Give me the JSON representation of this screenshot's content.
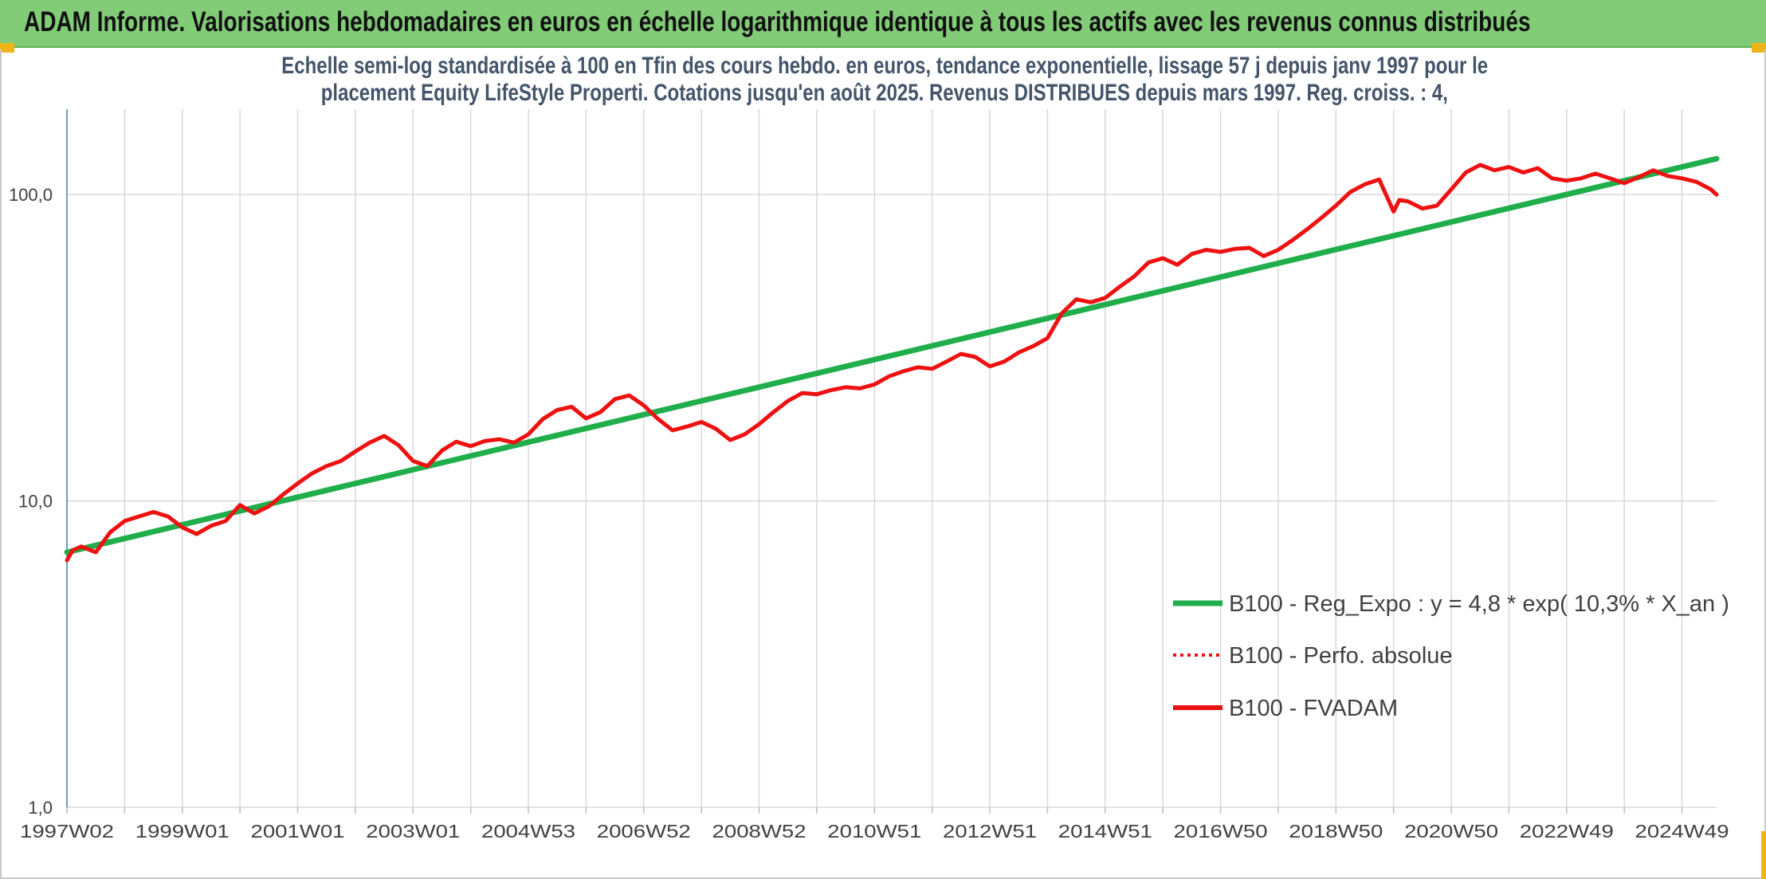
{
  "header": {
    "title": "ADAM Informe. Valorisations hebdomadaires en euros en échelle logarithmique identique à tous les actifs avec les revenus connus distribués"
  },
  "colors": {
    "banner": "#82cc78",
    "regression": "#1fae4b",
    "fvadam": "#ee1111",
    "perfo": "#ee1111",
    "grid": "#d9d9d9",
    "axis_text": "#404040",
    "subtitle": "#44546a",
    "accent_corner": "#f0b419"
  },
  "chart_data": {
    "type": "line",
    "title": "Echelle semi-log standardisée à 100 en Tfin des cours hebdo. en euros, tendance exponentielle, lissage 57 j depuis janv 1997 pour le placement Equity LifeStyle Properti. Cotations jusqu'en août 2025. Revenus DISTRIBUES depuis mars 1997. Reg. croiss. : 4,",
    "subtitle_lines": [
      "Echelle semi-log standardisée à 100 en Tfin des cours hebdo. en euros, tendance exponentielle, lissage 57 j depuis janv 1997 pour le",
      "placement Equity LifeStyle Properti. Cotations jusqu'en août 2025. Revenus DISTRIBUES depuis mars 1997. Reg. croiss. : 4,"
    ],
    "y_scale": "log",
    "ylim": [
      1,
      190
    ],
    "xlim": [
      1997.0,
      2025.6
    ],
    "grid": true,
    "legend_position": "right",
    "y_ticks": [
      {
        "value": 1,
        "label": "1,0"
      },
      {
        "value": 10,
        "label": "10,0"
      },
      {
        "value": 100,
        "label": "100,0"
      }
    ],
    "x_ticks": [
      {
        "value": 1997.0,
        "label": "1997W02"
      },
      {
        "value": 1999.0,
        "label": "1999W01"
      },
      {
        "value": 2001.0,
        "label": "2001W01"
      },
      {
        "value": 2003.0,
        "label": "2003W01"
      },
      {
        "value": 2005.0,
        "label": "2004W53"
      },
      {
        "value": 2007.0,
        "label": "2006W52"
      },
      {
        "value": 2009.0,
        "label": "2008W52"
      },
      {
        "value": 2011.0,
        "label": "2010W51"
      },
      {
        "value": 2013.0,
        "label": "2012W51"
      },
      {
        "value": 2015.0,
        "label": "2014W51"
      },
      {
        "value": 2017.0,
        "label": "2016W50"
      },
      {
        "value": 2019.0,
        "label": "2018W50"
      },
      {
        "value": 2021.0,
        "label": "2020W50"
      },
      {
        "value": 2023.0,
        "label": "2022W49"
      },
      {
        "value": 2025.0,
        "label": "2024W49"
      }
    ],
    "minor_gridlines": [
      1998.0,
      2000.0,
      2002.0,
      2004.0,
      2006.0,
      2008.0,
      2010.0,
      2012.0,
      2014.0,
      2016.0,
      2018.0,
      2020.0,
      2022.0,
      2024.0
    ],
    "series": [
      {
        "name": "B100 - Reg_Expo : y = 4,8 * exp( 10,3% *  X_an )",
        "style": "solid-thick",
        "color": "#1fae4b",
        "x": [
          1997.0,
          2025.6
        ],
        "y": [
          6.8,
          131
        ]
      },
      {
        "name": "B100 - Perfo. absolue",
        "style": "dotted",
        "color": "#ee1111",
        "x": [],
        "y": []
      },
      {
        "name": "B100 - FVADAM",
        "style": "solid",
        "color": "#ee1111",
        "x": [
          1997.0,
          1997.1,
          1997.25,
          1997.5,
          1997.75,
          1998.0,
          1998.25,
          1998.5,
          1998.75,
          1999.0,
          1999.25,
          1999.5,
          1999.75,
          2000.0,
          2000.25,
          2000.5,
          2000.75,
          2001.0,
          2001.25,
          2001.5,
          2001.75,
          2002.0,
          2002.25,
          2002.5,
          2002.75,
          2003.0,
          2003.25,
          2003.5,
          2003.75,
          2004.0,
          2004.25,
          2004.5,
          2004.75,
          2005.0,
          2005.25,
          2005.5,
          2005.75,
          2006.0,
          2006.25,
          2006.5,
          2006.75,
          2007.0,
          2007.25,
          2007.5,
          2007.75,
          2008.0,
          2008.25,
          2008.5,
          2008.75,
          2009.0,
          2009.25,
          2009.5,
          2009.75,
          2010.0,
          2010.25,
          2010.5,
          2010.75,
          2011.0,
          2011.25,
          2011.5,
          2011.75,
          2012.0,
          2012.25,
          2012.5,
          2012.75,
          2013.0,
          2013.25,
          2013.5,
          2013.75,
          2014.0,
          2014.25,
          2014.5,
          2014.75,
          2015.0,
          2015.25,
          2015.5,
          2015.75,
          2016.0,
          2016.25,
          2016.5,
          2016.75,
          2017.0,
          2017.25,
          2017.5,
          2017.75,
          2018.0,
          2018.25,
          2018.5,
          2018.75,
          2019.0,
          2019.25,
          2019.5,
          2019.75,
          2020.0,
          2020.1,
          2020.25,
          2020.5,
          2020.75,
          2021.0,
          2021.25,
          2021.5,
          2021.75,
          2022.0,
          2022.25,
          2022.5,
          2022.75,
          2023.0,
          2023.25,
          2023.5,
          2023.75,
          2024.0,
          2024.25,
          2024.5,
          2024.75,
          2025.0,
          2025.25,
          2025.5,
          2025.6
        ],
        "y": [
          6.4,
          6.9,
          7.1,
          6.8,
          7.9,
          8.6,
          8.9,
          9.2,
          8.9,
          8.2,
          7.8,
          8.3,
          8.6,
          9.7,
          9.1,
          9.6,
          10.5,
          11.4,
          12.3,
          13.0,
          13.5,
          14.5,
          15.5,
          16.3,
          15.2,
          13.5,
          13.0,
          14.6,
          15.6,
          15.1,
          15.7,
          15.9,
          15.5,
          16.5,
          18.5,
          19.8,
          20.3,
          18.6,
          19.5,
          21.5,
          22.1,
          20.5,
          18.5,
          17.0,
          17.5,
          18.1,
          17.2,
          15.8,
          16.5,
          17.8,
          19.5,
          21.2,
          22.5,
          22.3,
          23.0,
          23.5,
          23.3,
          24.0,
          25.5,
          26.5,
          27.3,
          27.0,
          28.5,
          30.2,
          29.5,
          27.5,
          28.5,
          30.5,
          32.0,
          34.0,
          41.0,
          45.5,
          44.5,
          46.0,
          50.0,
          54.0,
          60.0,
          62.0,
          59.0,
          64.0,
          66.0,
          65.0,
          66.5,
          67.0,
          63.0,
          66.0,
          71.0,
          77.0,
          84.0,
          92.0,
          102.0,
          108.0,
          112.0,
          88.0,
          96.0,
          95.0,
          90.0,
          92.0,
          104.0,
          118.0,
          125.0,
          120.0,
          123.0,
          118.0,
          122.0,
          113.0,
          111.0,
          113.0,
          117.0,
          113.0,
          109.0,
          114.0,
          120.0,
          115.0,
          113.0,
          110.0,
          104.0,
          100.0
        ]
      }
    ]
  }
}
